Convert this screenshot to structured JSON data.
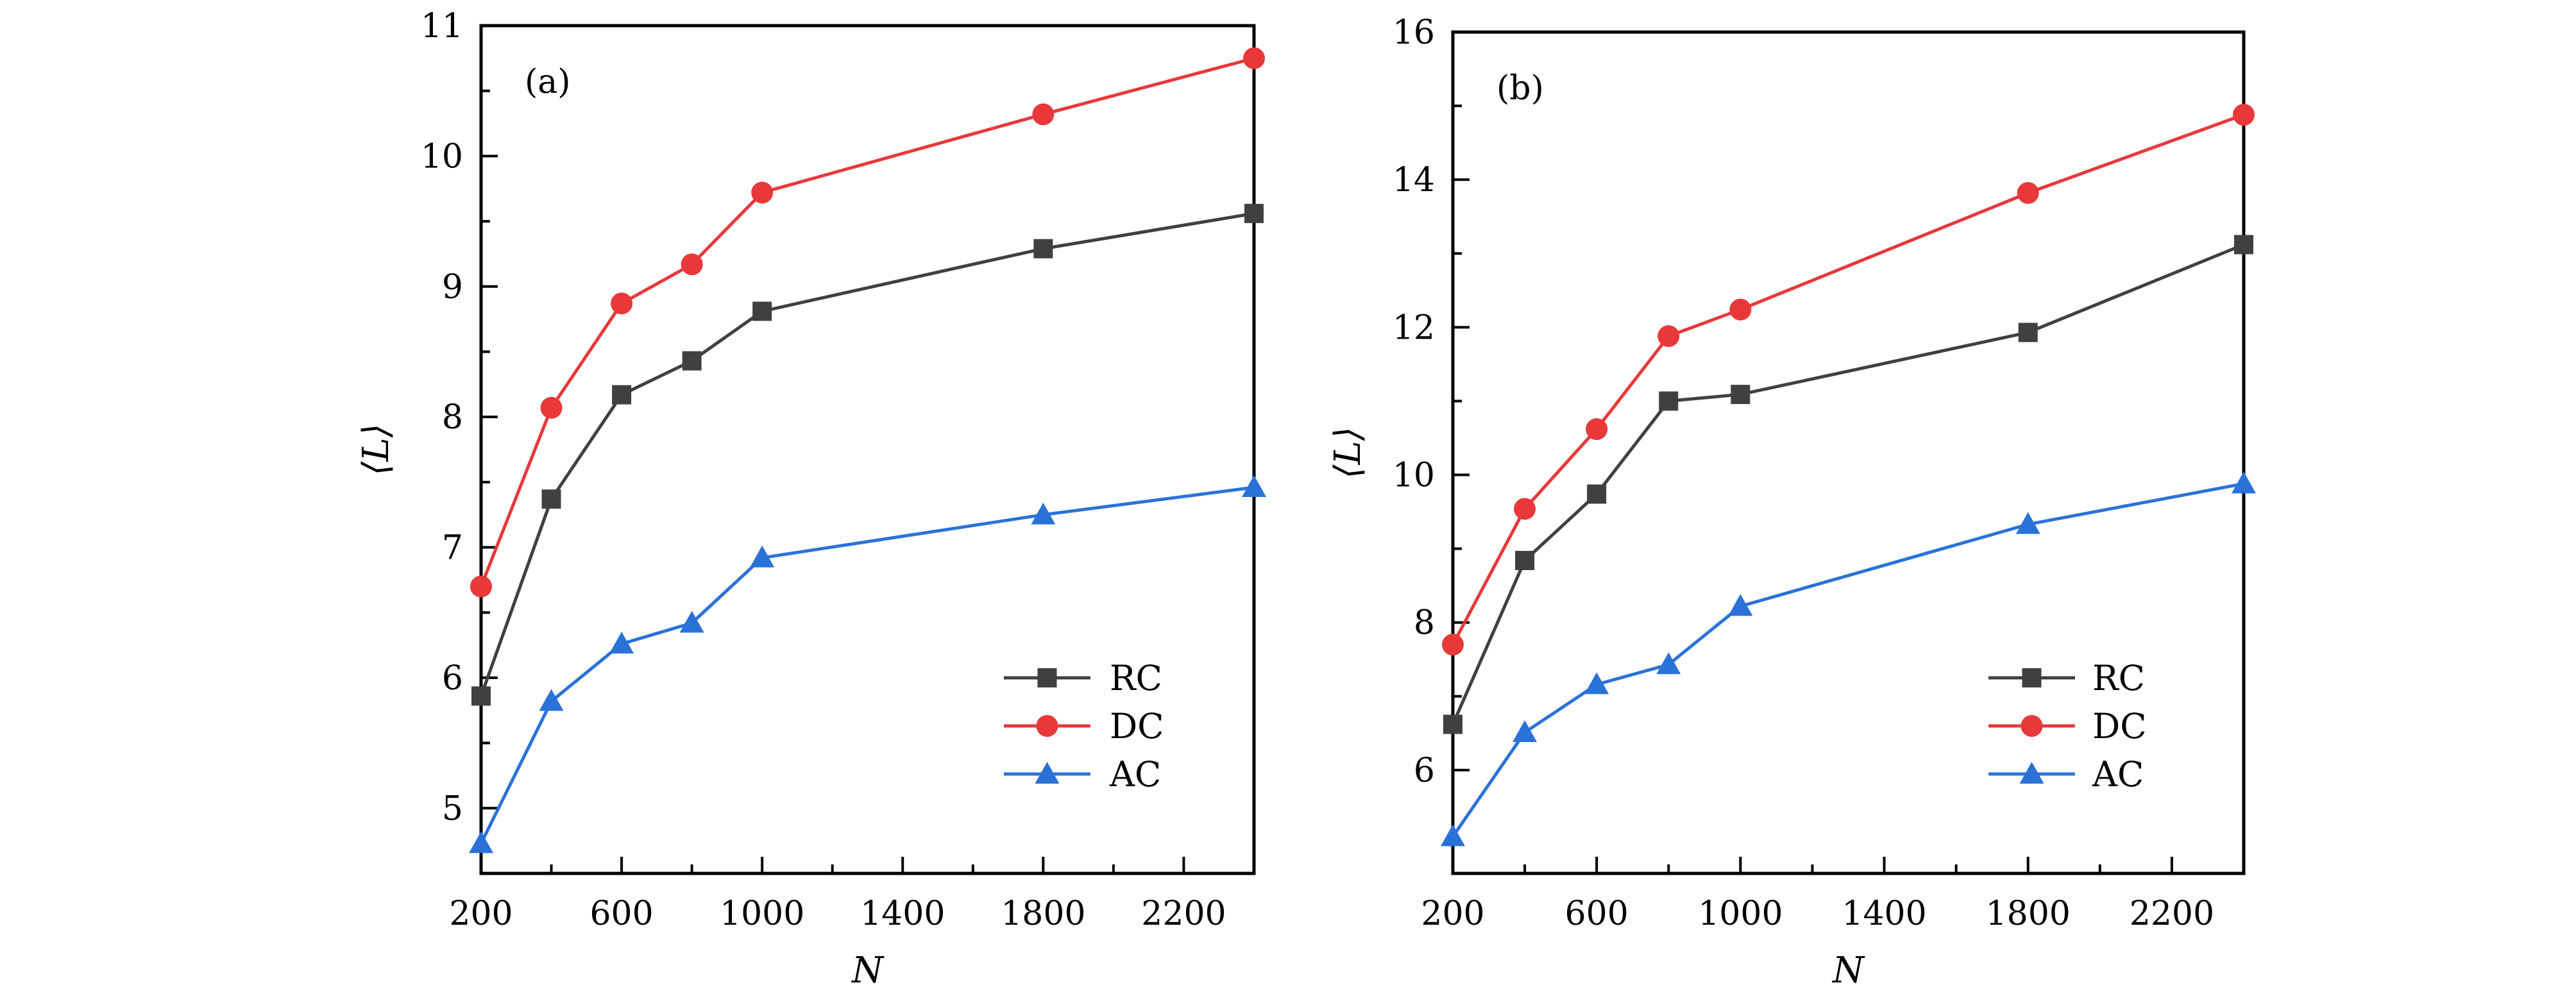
{
  "colors": {
    "RC": "#404040",
    "DC": "#e8383a",
    "AC": "#2a72d8"
  },
  "markers": {
    "RC": "square",
    "DC": "circle",
    "AC": "triangle"
  },
  "chart_data": [
    {
      "type": "line",
      "panel_label": "(a)",
      "xlabel": "N",
      "ylabel": "⟨L⟩",
      "xlim": [
        200,
        2400
      ],
      "ylim": [
        4.5,
        11
      ],
      "xticks": [
        200,
        600,
        1000,
        1400,
        1800,
        2200
      ],
      "yticks": [
        5,
        6,
        7,
        8,
        9,
        10,
        11
      ],
      "x": [
        200,
        400,
        600,
        800,
        1000,
        1800,
        2400
      ],
      "legend_position": "bottom-right",
      "series": [
        {
          "name": "RC",
          "values": [
            5.86,
            7.37,
            8.17,
            8.43,
            8.81,
            9.29,
            9.56
          ]
        },
        {
          "name": "DC",
          "values": [
            6.7,
            8.07,
            8.87,
            9.17,
            9.72,
            10.32,
            10.75
          ]
        },
        {
          "name": "AC",
          "values": [
            4.73,
            5.82,
            6.26,
            6.42,
            6.92,
            7.25,
            7.46
          ]
        }
      ]
    },
    {
      "type": "line",
      "panel_label": "(b)",
      "xlabel": "N",
      "ylabel": "⟨L⟩",
      "xlim": [
        200,
        2400
      ],
      "ylim": [
        4.6,
        16
      ],
      "xticks": [
        200,
        600,
        1000,
        1400,
        1800,
        2200
      ],
      "yticks": [
        6,
        8,
        10,
        12,
        14,
        16
      ],
      "x": [
        200,
        400,
        600,
        800,
        1000,
        1800,
        2400
      ],
      "legend_position": "bottom-right",
      "series": [
        {
          "name": "RC",
          "values": [
            6.62,
            8.84,
            9.74,
            11.0,
            11.09,
            11.93,
            13.12
          ]
        },
        {
          "name": "DC",
          "values": [
            7.7,
            9.54,
            10.62,
            11.88,
            12.24,
            13.82,
            14.88
          ]
        },
        {
          "name": "AC",
          "values": [
            5.1,
            6.51,
            7.16,
            7.43,
            8.22,
            9.33,
            9.88
          ]
        }
      ]
    }
  ]
}
